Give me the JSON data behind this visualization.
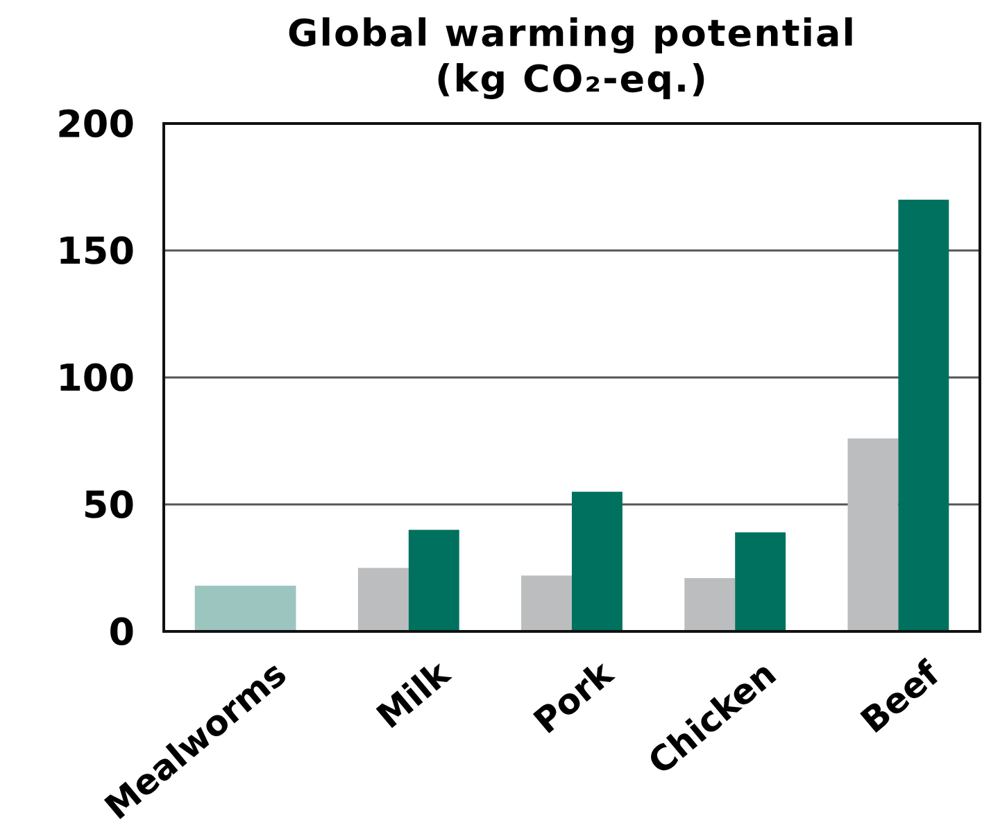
{
  "chart_data": {
    "type": "bar",
    "title": "Global warming potential (kg CO₂-eq.)",
    "categories": [
      "Mealworms",
      "Milk",
      "Pork",
      "Chicken",
      "Beef"
    ],
    "series": [
      {
        "color": "#bcbdbf",
        "values": [
          null,
          25,
          22,
          21,
          76
        ]
      },
      {
        "colors": [
          "#9cc5bf",
          "#00715e",
          "#00715e",
          "#00715e",
          "#00715e"
        ],
        "values": [
          18,
          40,
          55,
          39,
          170
        ]
      }
    ],
    "ylim": [
      0,
      200
    ],
    "yticks": [
      0,
      50,
      100,
      150,
      200
    ],
    "grid": "y"
  }
}
